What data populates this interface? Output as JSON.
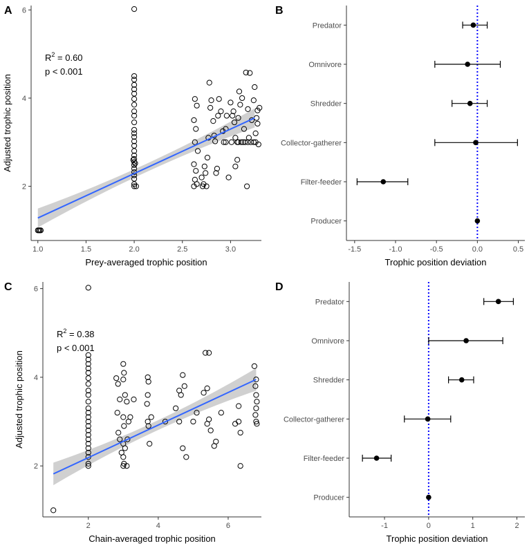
{
  "chart_data": [
    {
      "panel": "A",
      "type": "scatter",
      "xlabel": "Prey-averaged trophic position",
      "ylabel": "Adjusted trophic position",
      "xlim": [
        0.93,
        3.32
      ],
      "ylim": [
        0.77,
        6.1
      ],
      "xticks": [
        1.0,
        1.5,
        2.0,
        2.5,
        3.0
      ],
      "xtick_labels": [
        "1.0",
        "1.5",
        "2.0",
        "2.5",
        "3.0"
      ],
      "yticks": [
        2,
        4,
        6
      ],
      "ytick_labels": [
        "2",
        "4",
        "6"
      ],
      "annotation": {
        "r2_prefix": "R",
        "r2_sup": "2",
        "r2_value": " = 0.60",
        "p_text": "p < 0.001"
      },
      "fit": {
        "x0": 1.0,
        "y0": 1.28,
        "x1": 3.25,
        "y1": 3.55,
        "band": 0.17
      },
      "points": [
        [
          1.0,
          1.0
        ],
        [
          1.01,
          1.0
        ],
        [
          1.02,
          1.0
        ],
        [
          1.03,
          1.0
        ],
        [
          2.0,
          6.02
        ],
        [
          2.0,
          4.5
        ],
        [
          2.0,
          4.42
        ],
        [
          2.0,
          4.3
        ],
        [
          2.0,
          4.2
        ],
        [
          2.0,
          4.1
        ],
        [
          2.0,
          3.98
        ],
        [
          2.0,
          3.85
        ],
        [
          2.0,
          3.7
        ],
        [
          2.0,
          3.6
        ],
        [
          2.0,
          3.45
        ],
        [
          2.0,
          3.28
        ],
        [
          2.0,
          3.2
        ],
        [
          2.0,
          3.12
        ],
        [
          2.0,
          3.02
        ],
        [
          2.0,
          2.92
        ],
        [
          2.0,
          2.8
        ],
        [
          2.0,
          2.7
        ],
        [
          2.0,
          2.62
        ],
        [
          2.0,
          2.55
        ],
        [
          2.0,
          2.48
        ],
        [
          2.0,
          2.4
        ],
        [
          2.0,
          2.32
        ],
        [
          2.0,
          2.25
        ],
        [
          2.0,
          2.17
        ],
        [
          2.0,
          2.05
        ],
        [
          2.0,
          2.0
        ],
        [
          2.02,
          2.0
        ],
        [
          1.99,
          2.6
        ],
        [
          2.01,
          2.52
        ],
        [
          2.63,
          3.98
        ],
        [
          2.65,
          3.83
        ],
        [
          2.62,
          3.5
        ],
        [
          2.64,
          3.3
        ],
        [
          2.63,
          3.0
        ],
        [
          2.66,
          2.8
        ],
        [
          2.62,
          2.5
        ],
        [
          2.64,
          2.35
        ],
        [
          2.63,
          2.15
        ],
        [
          2.65,
          2.05
        ],
        [
          2.62,
          2.0
        ],
        [
          2.7,
          2.2
        ],
        [
          2.72,
          2.05
        ],
        [
          2.71,
          2.0
        ],
        [
          2.75,
          2.0
        ],
        [
          2.74,
          2.3
        ],
        [
          2.73,
          2.45
        ],
        [
          2.76,
          2.65
        ],
        [
          2.78,
          4.35
        ],
        [
          2.8,
          3.95
        ],
        [
          2.79,
          3.78
        ],
        [
          2.77,
          3.1
        ],
        [
          2.82,
          3.48
        ],
        [
          2.83,
          3.15
        ],
        [
          2.84,
          3.02
        ],
        [
          2.85,
          2.3
        ],
        [
          2.86,
          2.4
        ],
        [
          2.87,
          3.6
        ],
        [
          2.88,
          3.98
        ],
        [
          2.9,
          3.7
        ],
        [
          2.92,
          3.25
        ],
        [
          2.93,
          3.0
        ],
        [
          2.96,
          3.6
        ],
        [
          2.95,
          3.3
        ],
        [
          2.98,
          2.2
        ],
        [
          3.0,
          3.9
        ],
        [
          3.01,
          3.0
        ],
        [
          3.02,
          3.6
        ],
        [
          3.03,
          3.7
        ],
        [
          3.04,
          3.45
        ],
        [
          3.05,
          3.1
        ],
        [
          3.05,
          2.45
        ],
        [
          3.07,
          3.0
        ],
        [
          3.07,
          2.6
        ],
        [
          3.08,
          3.55
        ],
        [
          3.09,
          4.15
        ],
        [
          3.1,
          3.85
        ],
        [
          3.11,
          3.0
        ],
        [
          3.12,
          4.0
        ],
        [
          3.14,
          3.3
        ],
        [
          3.15,
          3.0
        ],
        [
          3.16,
          4.58
        ],
        [
          3.17,
          2.0
        ],
        [
          3.18,
          3.75
        ],
        [
          3.19,
          3.1
        ],
        [
          3.2,
          4.57
        ],
        [
          3.21,
          3.0
        ],
        [
          3.22,
          3.5
        ],
        [
          3.24,
          3.95
        ],
        [
          3.25,
          4.25
        ],
        [
          3.26,
          3.0
        ],
        [
          3.26,
          3.2
        ],
        [
          3.27,
          3.55
        ],
        [
          3.28,
          3.72
        ],
        [
          3.28,
          3.42
        ],
        [
          3.29,
          2.95
        ],
        [
          3.3,
          3.78
        ],
        [
          2.95,
          3.0
        ],
        [
          3.08,
          3.0
        ],
        [
          3.13,
          3.0
        ],
        [
          3.24,
          3.0
        ],
        [
          3.18,
          3.0
        ]
      ]
    },
    {
      "panel": "B",
      "type": "errorbar",
      "xlabel": "Trophic position deviation",
      "xlim": [
        -1.6,
        0.58
      ],
      "xticks": [
        -1.5,
        -1.0,
        -0.5,
        0.0,
        0.5
      ],
      "xtick_labels": [
        "-1.5",
        "-1.0",
        "-0.5",
        "0.0",
        "0.5"
      ],
      "categories": [
        "Predator",
        "Omnivore",
        "Shredder",
        "Collector-gatherer",
        "Filter-feeder",
        "Producer"
      ],
      "estimates": [
        -0.05,
        -0.12,
        -0.09,
        -0.02,
        -1.15,
        0.0
      ],
      "lower": [
        -0.18,
        -0.52,
        -0.31,
        -0.52,
        -1.47,
        0.0
      ],
      "upper": [
        0.12,
        0.28,
        0.12,
        0.49,
        -0.85,
        0.0
      ],
      "reference_line": 0
    },
    {
      "panel": "C",
      "type": "scatter",
      "xlabel": "Chain-averaged trophic position",
      "ylabel": "Adjusted trophic position",
      "xlim": [
        0.7,
        6.95
      ],
      "ylim": [
        0.85,
        6.15
      ],
      "xticks": [
        2,
        4,
        6
      ],
      "xtick_labels": [
        "2",
        "4",
        "6"
      ],
      "yticks": [
        2,
        4,
        6
      ],
      "ytick_labels": [
        "2",
        "4",
        "6"
      ],
      "annotation": {
        "r2_prefix": "R",
        "r2_sup": "2",
        "r2_value": " = 0.38",
        "p_text": "p < 0.001"
      },
      "fit": {
        "x0": 1.0,
        "y0": 1.82,
        "x1": 6.8,
        "y1": 3.95,
        "band": 0.2
      },
      "points": [
        [
          1.0,
          1.0
        ],
        [
          2.0,
          6.02
        ],
        [
          2.0,
          4.5
        ],
        [
          2.0,
          4.4
        ],
        [
          2.0,
          4.3
        ],
        [
          2.0,
          4.2
        ],
        [
          2.0,
          4.1
        ],
        [
          2.0,
          3.98
        ],
        [
          2.0,
          3.85
        ],
        [
          2.0,
          3.7
        ],
        [
          2.0,
          3.6
        ],
        [
          2.0,
          3.45
        ],
        [
          2.0,
          3.3
        ],
        [
          2.0,
          3.2
        ],
        [
          2.0,
          3.1
        ],
        [
          2.0,
          3.0
        ],
        [
          2.0,
          2.9
        ],
        [
          2.0,
          2.8
        ],
        [
          2.0,
          2.7
        ],
        [
          2.0,
          2.6
        ],
        [
          2.0,
          2.5
        ],
        [
          2.0,
          2.4
        ],
        [
          2.0,
          2.3
        ],
        [
          2.0,
          2.2
        ],
        [
          2.0,
          2.05
        ],
        [
          2.0,
          2.0
        ],
        [
          2.8,
          3.98
        ],
        [
          2.85,
          3.85
        ],
        [
          2.9,
          3.5
        ],
        [
          2.83,
          3.2
        ],
        [
          2.86,
          2.75
        ],
        [
          2.9,
          2.6
        ],
        [
          3.0,
          4.3
        ],
        [
          3.02,
          4.1
        ],
        [
          3.0,
          3.95
        ],
        [
          3.05,
          3.6
        ],
        [
          3.1,
          3.45
        ],
        [
          3.0,
          3.1
        ],
        [
          3.02,
          2.9
        ],
        [
          3.0,
          2.5
        ],
        [
          3.05,
          2.4
        ],
        [
          3.0,
          2.2
        ],
        [
          3.02,
          2.05
        ],
        [
          3.1,
          2.0
        ],
        [
          3.0,
          2.0
        ],
        [
          2.95,
          2.3
        ],
        [
          3.15,
          3.0
        ],
        [
          3.2,
          3.1
        ],
        [
          3.3,
          3.5
        ],
        [
          3.12,
          2.6
        ],
        [
          3.7,
          4.0
        ],
        [
          3.72,
          3.9
        ],
        [
          3.7,
          3.6
        ],
        [
          3.68,
          3.4
        ],
        [
          3.7,
          3.0
        ],
        [
          3.72,
          2.9
        ],
        [
          3.75,
          2.5
        ],
        [
          3.8,
          3.1
        ],
        [
          4.2,
          3.0
        ],
        [
          4.5,
          3.3
        ],
        [
          4.6,
          3.7
        ],
        [
          4.65,
          3.6
        ],
        [
          4.7,
          4.05
        ],
        [
          4.75,
          3.8
        ],
        [
          4.6,
          3.0
        ],
        [
          4.8,
          2.2
        ],
        [
          4.7,
          2.4
        ],
        [
          5.0,
          3.0
        ],
        [
          5.1,
          3.2
        ],
        [
          5.3,
          3.65
        ],
        [
          5.35,
          4.55
        ],
        [
          5.45,
          4.55
        ],
        [
          5.4,
          3.75
        ],
        [
          5.45,
          3.05
        ],
        [
          5.4,
          2.95
        ],
        [
          5.5,
          2.8
        ],
        [
          5.65,
          2.55
        ],
        [
          5.6,
          2.45
        ],
        [
          5.8,
          3.2
        ],
        [
          6.2,
          2.95
        ],
        [
          6.3,
          3.35
        ],
        [
          6.35,
          2.0
        ],
        [
          6.3,
          3.0
        ],
        [
          6.35,
          2.75
        ],
        [
          6.75,
          4.25
        ],
        [
          6.8,
          3.95
        ],
        [
          6.78,
          3.8
        ],
        [
          6.8,
          3.6
        ],
        [
          6.82,
          3.45
        ],
        [
          6.8,
          3.3
        ],
        [
          6.78,
          3.15
        ],
        [
          6.8,
          3.0
        ],
        [
          6.82,
          2.95
        ]
      ]
    },
    {
      "panel": "D",
      "type": "errorbar",
      "xlabel": "Trophic position deviation",
      "xlim": [
        -1.8,
        2.18
      ],
      "xticks": [
        -1,
        0,
        1,
        2
      ],
      "xtick_labels": [
        "-1",
        "0",
        "1",
        "2"
      ],
      "categories": [
        "Predator",
        "Omnivore",
        "Shredder",
        "Collector-gatherer",
        "Filter-feeder",
        "Producer"
      ],
      "estimates": [
        1.58,
        0.85,
        0.75,
        -0.02,
        -1.18,
        0.0
      ],
      "lower": [
        1.25,
        0.0,
        0.45,
        -0.55,
        -1.5,
        0.0
      ],
      "upper": [
        1.92,
        1.68,
        1.02,
        0.5,
        -0.85,
        0.0
      ],
      "reference_line": 0
    }
  ],
  "colors": {
    "fit_line": "#3366ff",
    "confidence_band": "#c8c8c8",
    "reference_line": "#0000ff",
    "axis": "#333333"
  }
}
